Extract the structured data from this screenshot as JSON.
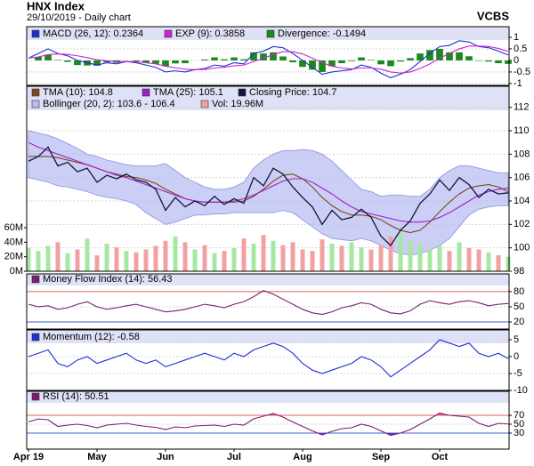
{
  "header": {
    "title": "HNX Index",
    "subtitle": "29/10/2019 - Daily chart",
    "source": "VCBS"
  },
  "chart_data": [
    {
      "type": "macd",
      "series": [
        {
          "name": "MACD (26, 12): 0.2364",
          "color": "#1f2fd0",
          "mark": "line",
          "values": [
            0.1,
            0.3,
            0.5,
            0.3,
            0.2,
            0.0,
            -0.1,
            -0.2,
            -0.1,
            -0.15,
            -0.05,
            -0.1,
            -0.2,
            -0.3,
            -0.5,
            -0.45,
            -0.5,
            -0.4,
            -0.35,
            -0.2,
            -0.25,
            -0.1,
            -0.15,
            0.3,
            0.4,
            0.6,
            0.55,
            0.3,
            0.0,
            -0.3,
            -0.6,
            -0.5,
            -0.45,
            -0.4,
            -0.2,
            -0.3,
            -0.55,
            -0.75,
            -0.6,
            -0.4,
            -0.05,
            0.3,
            0.6,
            0.65,
            0.85,
            0.8,
            0.6,
            0.55,
            0.4,
            0.2364
          ]
        },
        {
          "name": "EXP (9): 0.3858",
          "color": "#d020d0",
          "mark": "line",
          "values": [
            0.1,
            0.15,
            0.25,
            0.28,
            0.26,
            0.2,
            0.12,
            0.03,
            -0.02,
            -0.05,
            -0.05,
            -0.06,
            -0.1,
            -0.15,
            -0.25,
            -0.32,
            -0.38,
            -0.4,
            -0.39,
            -0.33,
            -0.3,
            -0.23,
            -0.2,
            -0.05,
            0.1,
            0.25,
            0.38,
            0.38,
            0.28,
            0.1,
            -0.1,
            -0.25,
            -0.33,
            -0.37,
            -0.33,
            -0.32,
            -0.38,
            -0.5,
            -0.55,
            -0.5,
            -0.35,
            -0.15,
            0.1,
            0.3,
            0.5,
            0.62,
            0.62,
            0.6,
            0.52,
            0.3858
          ]
        },
        {
          "name": "Divergence: -0.1494",
          "color": "#1a8a1a",
          "mark": "bar",
          "values": [
            0,
            0.15,
            0.25,
            0.02,
            -0.06,
            -0.2,
            -0.22,
            -0.23,
            -0.08,
            -0.1,
            0,
            -0.04,
            -0.1,
            -0.15,
            -0.25,
            -0.13,
            -0.12,
            0,
            0.04,
            0.13,
            0.05,
            0.13,
            0.05,
            0.35,
            0.3,
            0.35,
            0.17,
            -0.08,
            -0.28,
            -0.4,
            -0.5,
            -0.25,
            -0.12,
            -0.03,
            0.13,
            0.02,
            -0.17,
            -0.25,
            -0.05,
            0.1,
            0.3,
            0.45,
            0.5,
            0.35,
            0.35,
            0.18,
            -0.02,
            -0.05,
            -0.12,
            -0.1494
          ]
        }
      ],
      "ylim": [
        -1.08,
        1.46
      ],
      "yticks": [
        1,
        0.5,
        0,
        -0.5,
        -1
      ],
      "grid": true
    },
    {
      "type": "price",
      "series": [
        {
          "name": "TMA (10): 104.8",
          "color": "#7a4a1e",
          "mark": "line",
          "values": [
            107.8,
            107.8,
            107.8,
            107.7,
            107.5,
            107.3,
            107.1,
            106.8,
            106.5,
            106.3,
            106.1,
            106.0,
            105.8,
            105.5,
            105.0,
            104.6,
            104.2,
            104.0,
            103.9,
            103.9,
            103.9,
            103.9,
            104.0,
            104.4,
            105.0,
            105.7,
            106.2,
            106.3,
            105.9,
            105.2,
            104.3,
            103.6,
            103.1,
            102.8,
            102.8,
            102.7,
            102.4,
            101.9,
            101.5,
            101.3,
            101.5,
            102.2,
            103.1,
            103.9,
            104.6,
            105.1,
            105.3,
            105.4,
            105.2,
            104.8
          ]
        },
        {
          "name": "TMA (25): 105.1",
          "color": "#a020c8",
          "mark": "line",
          "values": [
            109.0,
            108.6,
            108.3,
            108.0,
            107.7,
            107.4,
            107.1,
            106.8,
            106.5,
            106.2,
            106.0,
            105.7,
            105.4,
            105.1,
            104.8,
            104.5,
            104.2,
            104.0,
            103.9,
            103.9,
            103.9,
            104.0,
            104.2,
            104.5,
            104.9,
            105.3,
            105.7,
            105.9,
            105.9,
            105.6,
            105.1,
            104.6,
            104.0,
            103.5,
            103.1,
            102.9,
            102.7,
            102.5,
            102.3,
            102.2,
            102.2,
            102.3,
            102.6,
            103.0,
            103.5,
            104.0,
            104.5,
            104.8,
            105.0,
            105.1
          ]
        },
        {
          "name": "Closing Price: 104.7",
          "color": "#14143c",
          "mark": "price",
          "values": [
            107.4,
            107.8,
            108.6,
            107.0,
            107.3,
            106.5,
            106.8,
            105.6,
            106.2,
            105.9,
            106.3,
            105.8,
            105.6,
            105.0,
            103.2,
            104.3,
            103.5,
            104.0,
            103.6,
            104.4,
            103.7,
            104.2,
            103.8,
            106.0,
            105.3,
            106.8,
            106.3,
            105.2,
            104.3,
            103.5,
            102.0,
            103.2,
            102.4,
            102.6,
            103.3,
            102.6,
            101.0,
            100.2,
            101.5,
            102.3,
            103.8,
            104.6,
            105.8,
            104.9,
            106.0,
            105.4,
            104.3,
            105.0,
            104.6,
            104.7
          ]
        },
        {
          "name": "Bollinger (20, 2): 103.6 - 106.4",
          "color": "#b9bdf2",
          "mark": "band",
          "upper": [
            110.0,
            109.8,
            109.6,
            109.3,
            108.9,
            108.5,
            108.0,
            107.8,
            107.5,
            107.3,
            107.1,
            107.0,
            107.0,
            107.0,
            107.2,
            106.6,
            106.0,
            105.6,
            105.2,
            105.0,
            105.0,
            105.2,
            105.6,
            106.8,
            107.5,
            108.0,
            108.3,
            108.3,
            108.4,
            108.3,
            108.0,
            107.4,
            106.6,
            105.8,
            105.0,
            104.8,
            104.4,
            104.5,
            104.5,
            104.4,
            104.4,
            105.0,
            106.0,
            106.6,
            107.0,
            107.0,
            106.8,
            106.6,
            106.4,
            106.4
          ],
          "lower": [
            106.0,
            105.8,
            105.6,
            105.3,
            105.2,
            105.0,
            104.8,
            104.5,
            104.3,
            104.2,
            104.0,
            103.7,
            103.0,
            102.5,
            102.0,
            102.2,
            102.5,
            102.8,
            102.8,
            102.9,
            102.9,
            103.0,
            103.0,
            103.0,
            103.0,
            103.0,
            103.2,
            103.0,
            102.4,
            101.8,
            101.2,
            100.8,
            100.7,
            100.6,
            100.8,
            100.6,
            100.2,
            99.8,
            99.5,
            99.4,
            99.5,
            99.8,
            100.2,
            100.8,
            101.8,
            102.8,
            103.3,
            103.5,
            103.6,
            103.6
          ]
        },
        {
          "name": "Vol: 19.96M",
          "color": "#f2a0a0",
          "up_color": "#a6e8a0",
          "mark": "volume",
          "axis": "y2",
          "values": [
            32000000,
            28000000,
            35000000,
            40000000,
            25000000,
            30000000,
            45000000,
            22000000,
            38000000,
            33000000,
            28000000,
            26000000,
            30000000,
            35000000,
            42000000,
            48000000,
            40000000,
            30000000,
            36000000,
            25000000,
            28000000,
            32000000,
            45000000,
            38000000,
            50000000,
            42000000,
            36000000,
            40000000,
            30000000,
            28000000,
            44000000,
            38000000,
            35000000,
            40000000,
            33000000,
            30000000,
            36000000,
            48000000,
            52000000,
            42000000,
            38000000,
            30000000,
            35000000,
            28000000,
            40000000,
            32000000,
            30000000,
            26000000,
            22000000,
            19960000
          ]
        }
      ],
      "ylim": [
        98,
        113.8
      ],
      "yticks": [
        112,
        110,
        108,
        106,
        104,
        102,
        100,
        98
      ],
      "y2lim": [
        0,
        255000000
      ],
      "y2ticks": [
        {
          "value": 60000000,
          "label": "60M"
        },
        {
          "value": 40000000,
          "label": "40M"
        },
        {
          "value": 20000000,
          "label": "20M"
        },
        {
          "value": 0,
          "label": "0M"
        }
      ],
      "grid": true
    },
    {
      "type": "oscillator",
      "series": [
        {
          "name": "Money Flow Index (14): 56.43",
          "color": "#7a1e6e",
          "mark": "line",
          "values": [
            55,
            50,
            52,
            45,
            48,
            55,
            60,
            50,
            45,
            48,
            52,
            55,
            50,
            45,
            40,
            42,
            45,
            50,
            55,
            52,
            48,
            55,
            60,
            70,
            82,
            75,
            65,
            55,
            45,
            38,
            35,
            40,
            48,
            52,
            58,
            55,
            45,
            38,
            36,
            42,
            55,
            62,
            58,
            55,
            60,
            62,
            58,
            52,
            55,
            56.43
          ]
        }
      ],
      "ylim": [
        6,
        115
      ],
      "yticks": [
        80,
        50,
        20
      ],
      "bands": true,
      "shade_extremes": false,
      "grid": true
    },
    {
      "type": "oscillator",
      "series": [
        {
          "name": "Momentum (12): -0.58",
          "color": "#1f2fd0",
          "mark": "line",
          "values": [
            0,
            1,
            2,
            -2,
            -3,
            -1,
            0,
            -2,
            -1,
            0,
            1,
            -1,
            -2,
            -1,
            -3,
            -2,
            -1,
            0,
            1,
            0,
            -1,
            1,
            0,
            2,
            3,
            4,
            3,
            1,
            -2,
            -4,
            -5,
            -4,
            -3,
            -2,
            0,
            -1,
            -3,
            -6,
            -4,
            -2,
            0,
            2,
            5,
            4,
            3,
            4,
            1,
            0,
            1,
            -0.58
          ]
        }
      ],
      "ylim": [
        -10,
        7.9
      ],
      "yticks": [
        5,
        0,
        -5,
        -10
      ],
      "bands": false,
      "shade_extremes": false,
      "grid": true
    },
    {
      "type": "oscillator",
      "series": [
        {
          "name": "RSI (14): 50.51",
          "color": "#7a1e6e",
          "mark": "line",
          "values": [
            55,
            62,
            60,
            45,
            48,
            50,
            47,
            42,
            48,
            50,
            52,
            48,
            45,
            43,
            38,
            44,
            42,
            46,
            47,
            48,
            45,
            50,
            48,
            62,
            68,
            74,
            66,
            55,
            45,
            35,
            26,
            34,
            40,
            42,
            50,
            45,
            35,
            25,
            30,
            38,
            50,
            62,
            75,
            70,
            68,
            66,
            52,
            45,
            52,
            50.51
          ]
        }
      ],
      "ylim": [
        -6,
        124
      ],
      "yticks": [
        70,
        50,
        30
      ],
      "bands": true,
      "shade_extremes": true,
      "grid": true,
      "categories": [
        "Apr 19",
        null,
        null,
        null,
        null,
        null,
        null,
        "May",
        null,
        null,
        null,
        null,
        null,
        null,
        "Jun",
        null,
        null,
        null,
        null,
        null,
        null,
        "Jul",
        null,
        null,
        null,
        null,
        null,
        null,
        "Aug",
        null,
        null,
        null,
        null,
        null,
        null,
        null,
        "Sep",
        null,
        null,
        null,
        null,
        null,
        "Oct",
        null,
        null,
        null,
        null,
        null,
        null,
        null
      ]
    }
  ]
}
